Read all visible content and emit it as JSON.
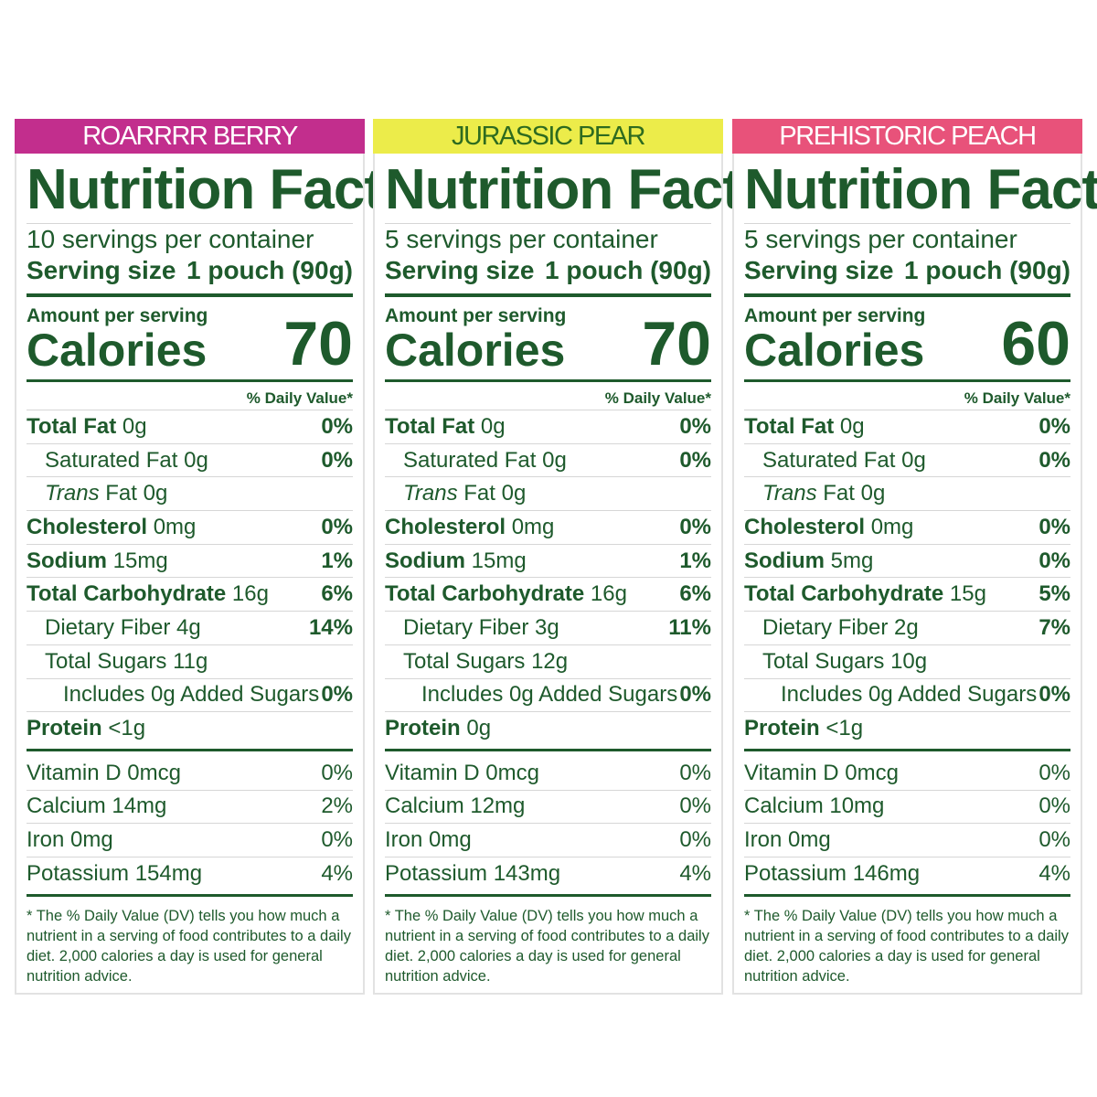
{
  "panels": [
    {
      "flavor": "ROARRRR BERRY",
      "color": "#c22e8d",
      "textColor": "#ffffff",
      "title": "Nutrition Facts",
      "servings": "10 servings per container",
      "serving_size_label": "Serving size",
      "serving_size_value": "1 pouch (90g)",
      "amount_per_serving": "Amount per serving",
      "calories_label": "Calories",
      "calories": "70",
      "dv_header": "% Daily Value*",
      "nutrients": [
        {
          "name": "Total Fat",
          "amount": "0g",
          "dv": "0%",
          "bold": true,
          "indent": 0
        },
        {
          "name": "Saturated Fat",
          "amount": "0g",
          "dv": "0%",
          "bold": false,
          "indent": 1
        },
        {
          "name": "Trans",
          "name_rest": "Fat",
          "amount": "0g",
          "dv": "",
          "bold": false,
          "indent": 1,
          "italic": true
        },
        {
          "name": "Cholesterol",
          "amount": "0mg",
          "dv": "0%",
          "bold": true,
          "indent": 0
        },
        {
          "name": "Sodium",
          "amount": "15mg",
          "dv": "1%",
          "bold": true,
          "indent": 0
        },
        {
          "name": "Total Carbohydrate",
          "amount": "16g",
          "dv": "6%",
          "bold": true,
          "indent": 0
        },
        {
          "name": "Dietary Fiber",
          "amount": "4g",
          "dv": "14%",
          "bold": false,
          "indent": 1
        },
        {
          "name": "Total Sugars",
          "amount": "11g",
          "dv": "",
          "bold": false,
          "indent": 1
        },
        {
          "name": "Includes 0g Added Sugars",
          "amount": "",
          "dv": "0%",
          "bold": false,
          "indent": 2
        },
        {
          "name": "Protein",
          "amount": "<1g",
          "dv": "",
          "bold": true,
          "indent": 0
        }
      ],
      "vitamins": [
        {
          "name": "Vitamin D 0mcg",
          "dv": "0%"
        },
        {
          "name": "Calcium 14mg",
          "dv": "2%"
        },
        {
          "name": "Iron 0mg",
          "dv": "0%"
        },
        {
          "name": "Potassium 154mg",
          "dv": "4%"
        }
      ],
      "footnote": "* The % Daily Value (DV) tells you how much a nutrient in a serving of food contributes to a daily diet. 2,000 calories a day is used for general nutrition advice."
    },
    {
      "flavor": "JURASSIC PEAR",
      "color": "#ecec4a",
      "textColor": "#2e6b1f",
      "title": "Nutrition Facts",
      "servings": "5 servings per container",
      "serving_size_label": "Serving size",
      "serving_size_value": "1 pouch (90g)",
      "amount_per_serving": "Amount per serving",
      "calories_label": "Calories",
      "calories": "70",
      "dv_header": "% Daily Value*",
      "nutrients": [
        {
          "name": "Total Fat",
          "amount": "0g",
          "dv": "0%",
          "bold": true,
          "indent": 0
        },
        {
          "name": "Saturated Fat",
          "amount": "0g",
          "dv": "0%",
          "bold": false,
          "indent": 1
        },
        {
          "name": "Trans",
          "name_rest": "Fat",
          "amount": "0g",
          "dv": "",
          "bold": false,
          "indent": 1,
          "italic": true
        },
        {
          "name": "Cholesterol",
          "amount": "0mg",
          "dv": "0%",
          "bold": true,
          "indent": 0
        },
        {
          "name": "Sodium",
          "amount": "15mg",
          "dv": "1%",
          "bold": true,
          "indent": 0
        },
        {
          "name": "Total Carbohydrate",
          "amount": "16g",
          "dv": "6%",
          "bold": true,
          "indent": 0
        },
        {
          "name": "Dietary Fiber",
          "amount": "3g",
          "dv": "11%",
          "bold": false,
          "indent": 1
        },
        {
          "name": "Total Sugars",
          "amount": "12g",
          "dv": "",
          "bold": false,
          "indent": 1
        },
        {
          "name": "Includes 0g Added Sugars",
          "amount": "",
          "dv": "0%",
          "bold": false,
          "indent": 2
        },
        {
          "name": "Protein",
          "amount": "0g",
          "dv": "",
          "bold": true,
          "indent": 0
        }
      ],
      "vitamins": [
        {
          "name": "Vitamin D 0mcg",
          "dv": "0%"
        },
        {
          "name": "Calcium 12mg",
          "dv": "0%"
        },
        {
          "name": "Iron 0mg",
          "dv": "0%"
        },
        {
          "name": "Potassium 143mg",
          "dv": "4%"
        }
      ],
      "footnote": "* The % Daily Value (DV) tells you how much a nutrient in a serving of food contributes to a daily diet. 2,000 calories a day is used for general nutrition advice."
    },
    {
      "flavor": "PREHISTORIC PEACH",
      "color": "#e8527a",
      "textColor": "#ffffff",
      "title": "Nutrition Facts",
      "servings": "5 servings per container",
      "serving_size_label": "Serving size",
      "serving_size_value": "1 pouch (90g)",
      "amount_per_serving": "Amount per serving",
      "calories_label": "Calories",
      "calories": "60",
      "dv_header": "% Daily Value*",
      "nutrients": [
        {
          "name": "Total Fat",
          "amount": "0g",
          "dv": "0%",
          "bold": true,
          "indent": 0
        },
        {
          "name": "Saturated Fat",
          "amount": "0g",
          "dv": "0%",
          "bold": false,
          "indent": 1
        },
        {
          "name": "Trans",
          "name_rest": "Fat",
          "amount": "0g",
          "dv": "",
          "bold": false,
          "indent": 1,
          "italic": true
        },
        {
          "name": "Cholesterol",
          "amount": "0mg",
          "dv": "0%",
          "bold": true,
          "indent": 0
        },
        {
          "name": "Sodium",
          "amount": "5mg",
          "dv": "0%",
          "bold": true,
          "indent": 0
        },
        {
          "name": "Total Carbohydrate",
          "amount": "15g",
          "dv": "5%",
          "bold": true,
          "indent": 0
        },
        {
          "name": "Dietary Fiber",
          "amount": "2g",
          "dv": "7%",
          "bold": false,
          "indent": 1
        },
        {
          "name": "Total Sugars",
          "amount": "10g",
          "dv": "",
          "bold": false,
          "indent": 1
        },
        {
          "name": "Includes 0g Added Sugars",
          "amount": "",
          "dv": "0%",
          "bold": false,
          "indent": 2
        },
        {
          "name": "Protein",
          "amount": "<1g",
          "dv": "",
          "bold": true,
          "indent": 0
        }
      ],
      "vitamins": [
        {
          "name": "Vitamin D 0mcg",
          "dv": "0%"
        },
        {
          "name": "Calcium 10mg",
          "dv": "0%"
        },
        {
          "name": "Iron 0mg",
          "dv": "0%"
        },
        {
          "name": "Potassium 146mg",
          "dv": "4%"
        }
      ],
      "footnote": "* The % Daily Value (DV) tells you how much a nutrient in a serving of food contributes to a daily diet. 2,000 calories a day is used for general nutrition advice."
    }
  ]
}
